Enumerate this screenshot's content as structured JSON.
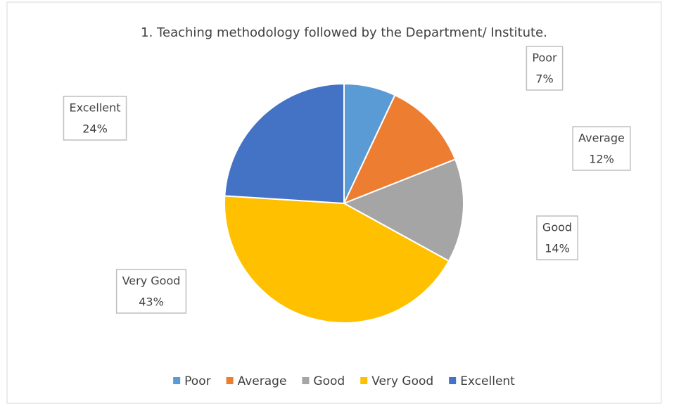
{
  "chart_data": {
    "type": "pie",
    "title": "1. Teaching methodology followed by the Department/ Institute.",
    "categories": [
      "Poor",
      "Average",
      "Good",
      "Very Good",
      "Excellent"
    ],
    "values": [
      7,
      12,
      14,
      43,
      24
    ],
    "value_labels": [
      "7%",
      "12%",
      "14%",
      "43%",
      "24%"
    ],
    "colors": [
      "#5b9bd5",
      "#ed7d31",
      "#a5a5a5",
      "#ffc000",
      "#4472c4"
    ],
    "legend": "bottom"
  }
}
